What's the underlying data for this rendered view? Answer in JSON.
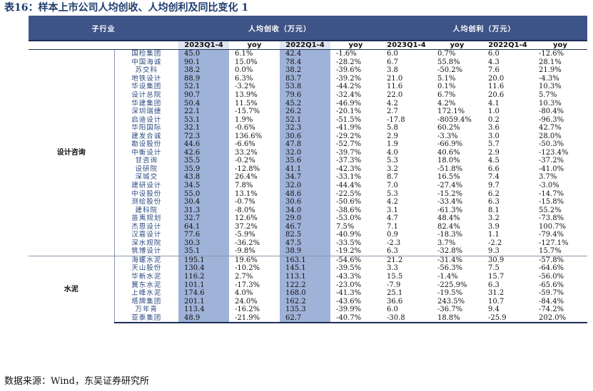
{
  "title": "表16：样本上市公司人均创收、人均创利及同比变化 1",
  "source": "数据来源：Wind，东吴证券研究所",
  "headers": {
    "subindustry": "子行业",
    "revenue_group": "人均创收（万元）",
    "profit_group": "人均创利（万元）",
    "period1": "2023Q1-4",
    "period2": "2022Q1-4",
    "yoy": "yoy"
  },
  "groups": [
    {
      "name": "设计咨询",
      "rows": [
        {
          "company": "国检集团",
          "rev2023": "45.0",
          "rev_yoy": "6.1%",
          "rev2022": "42.4",
          "rev2022_yoy": "-1.6%",
          "pro2023": "6.0",
          "pro_yoy": "0.7%",
          "pro2022": "6.0",
          "pro2022_yoy": "-12.6%"
        },
        {
          "company": "中国海诚",
          "rev2023": "90.1",
          "rev_yoy": "15.0%",
          "rev2022": "78.4",
          "rev2022_yoy": "-28.2%",
          "pro2023": "6.7",
          "pro_yoy": "55.8%",
          "pro2022": "4.3",
          "pro2022_yoy": "28.1%"
        },
        {
          "company": "苏交科",
          "rev2023": "38.2",
          "rev_yoy": "0.0%",
          "rev2022": "38.2",
          "rev2022_yoy": "-39.6%",
          "pro2023": "3.8",
          "pro_yoy": "-50.2%",
          "pro2022": "7.6",
          "pro2022_yoy": "21.9%"
        },
        {
          "company": "地铁设计",
          "rev2023": "88.9",
          "rev_yoy": "6.3%",
          "rev2022": "83.7",
          "rev2022_yoy": "-39.2%",
          "pro2023": "21.0",
          "pro_yoy": "5.1%",
          "pro2022": "20.0",
          "pro2022_yoy": "-4.3%"
        },
        {
          "company": "华设集团",
          "rev2023": "52.1",
          "rev_yoy": "-3.2%",
          "rev2022": "53.8",
          "rev2022_yoy": "-44.2%",
          "pro2023": "11.6",
          "pro_yoy": "0.1%",
          "pro2022": "11.6",
          "pro2022_yoy": "10.3%"
        },
        {
          "company": "设计总院",
          "rev2023": "90.7",
          "rev_yoy": "13.9%",
          "rev2022": "79.6",
          "rev2022_yoy": "-32.4%",
          "pro2023": "22.0",
          "pro_yoy": "6.7%",
          "pro2022": "20.6",
          "pro2022_yoy": "5.7%"
        },
        {
          "company": "华建集团",
          "rev2023": "50.4",
          "rev_yoy": "11.5%",
          "rev2022": "45.2",
          "rev2022_yoy": "-46.9%",
          "pro2023": "4.2",
          "pro_yoy": "4.2%",
          "pro2022": "4.1",
          "pro2022_yoy": "10.3%"
        },
        {
          "company": "深圳瑞捷",
          "rev2023": "22.1",
          "rev_yoy": "-15.7%",
          "rev2022": "26.2",
          "rev2022_yoy": "-20.1%",
          "pro2023": "2.7",
          "pro_yoy": "172.1%",
          "pro2022": "1.0",
          "pro2022_yoy": "-80.4%"
        },
        {
          "company": "启迪设计",
          "rev2023": "53.1",
          "rev_yoy": "1.9%",
          "rev2022": "52.1",
          "rev2022_yoy": "-51.5%",
          "pro2023": "-17.8",
          "pro_yoy": "-8059.4%",
          "pro2022": "0.2",
          "pro2022_yoy": "-96.3%"
        },
        {
          "company": "华阳国际",
          "rev2023": "32.1",
          "rev_yoy": "-0.6%",
          "rev2022": "32.3",
          "rev2022_yoy": "-41.9%",
          "pro2023": "5.8",
          "pro_yoy": "60.2%",
          "pro2022": "3.6",
          "pro2022_yoy": "42.7%"
        },
        {
          "company": "建发合诚",
          "rev2023": "72.3",
          "rev_yoy": "136.6%",
          "rev2022": "30.6",
          "rev2022_yoy": "-29.2%",
          "pro2023": "2.9",
          "pro_yoy": "-3.3%",
          "pro2022": "3.0",
          "pro2022_yoy": "28.0%"
        },
        {
          "company": "勘设股份",
          "rev2023": "44.6",
          "rev_yoy": "-6.6%",
          "rev2022": "47.8",
          "rev2022_yoy": "-52.7%",
          "pro2023": "1.9",
          "pro_yoy": "-66.9%",
          "pro2022": "5.7",
          "pro2022_yoy": "-50.3%"
        },
        {
          "company": "中衡设计",
          "rev2023": "42.6",
          "rev_yoy": "33.2%",
          "rev2022": "32.0",
          "rev2022_yoy": "-39.7%",
          "pro2023": "4.0",
          "pro_yoy": "40.6%",
          "pro2022": "2.9",
          "pro2022_yoy": "-123.4%"
        },
        {
          "company": "甘咨询",
          "rev2023": "35.5",
          "rev_yoy": "-0.2%",
          "rev2022": "35.6",
          "rev2022_yoy": "-37.3%",
          "pro2023": "5.3",
          "pro_yoy": "18.0%",
          "pro2022": "4.5",
          "pro2022_yoy": "-37.2%"
        },
        {
          "company": "设研院",
          "rev2023": "35.9",
          "rev_yoy": "-12.8%",
          "rev2022": "41.1",
          "rev2022_yoy": "-42.3%",
          "pro2023": "3.2",
          "pro_yoy": "-51.8%",
          "pro2022": "6.6",
          "pro2022_yoy": "-41.0%"
        },
        {
          "company": "深城交",
          "rev2023": "43.8",
          "rev_yoy": "26.4%",
          "rev2022": "34.7",
          "rev2022_yoy": "-33.1%",
          "pro2023": "8.7",
          "pro_yoy": "16.5%",
          "pro2022": "7.4",
          "pro2022_yoy": "3.7%"
        },
        {
          "company": "建研设计",
          "rev2023": "34.5",
          "rev_yoy": "7.8%",
          "rev2022": "32.0",
          "rev2022_yoy": "-44.4%",
          "pro2023": "7.0",
          "pro_yoy": "-27.4%",
          "pro2022": "9.7",
          "pro2022_yoy": "-3.0%"
        },
        {
          "company": "中设股份",
          "rev2023": "55.0",
          "rev_yoy": "13.1%",
          "rev2022": "48.6",
          "rev2022_yoy": "-22.5%",
          "pro2023": "5.3",
          "pro_yoy": "-15.2%",
          "pro2022": "6.2",
          "pro2022_yoy": "-14.7%"
        },
        {
          "company": "测绘股份",
          "rev2023": "30.4",
          "rev_yoy": "-0.7%",
          "rev2022": "30.6",
          "rev2022_yoy": "-50.6%",
          "pro2023": "4.2",
          "pro_yoy": "-33.4%",
          "pro2022": "6.3",
          "pro2022_yoy": "-15.8%"
        },
        {
          "company": "建科院",
          "rev2023": "31.3",
          "rev_yoy": "-8.0%",
          "rev2022": "34.0",
          "rev2022_yoy": "-38.6%",
          "pro2023": "3.1",
          "pro_yoy": "-61.3%",
          "pro2022": "8.1",
          "pro2022_yoy": "55.2%"
        },
        {
          "company": "苗夷规划",
          "rev2023": "32.7",
          "rev_yoy": "12.6%",
          "rev2022": "29.0",
          "rev2022_yoy": "-53.0%",
          "pro2023": "4.7",
          "pro_yoy": "48.4%",
          "pro2022": "3.2",
          "pro2022_yoy": "-73.8%"
        },
        {
          "company": "杰恩设计",
          "rev2023": "64.1",
          "rev_yoy": "37.2%",
          "rev2022": "46.7",
          "rev2022_yoy": "7.5%",
          "pro2023": "7.1",
          "pro_yoy": "82.4%",
          "pro2022": "3.9",
          "pro2022_yoy": "100.7%"
        },
        {
          "company": "汉嘉设计",
          "rev2023": "77.6",
          "rev_yoy": "-5.9%",
          "rev2022": "82.5",
          "rev2022_yoy": "-40.9%",
          "pro2023": "0.9",
          "pro_yoy": "-18.3%",
          "pro2022": "1.1",
          "pro2022_yoy": "-79.4%"
        },
        {
          "company": "深水规院",
          "rev2023": "30.3",
          "rev_yoy": "-36.2%",
          "rev2022": "47.5",
          "rev2022_yoy": "-33.5%",
          "pro2023": "-2.3",
          "pro_yoy": "3.7%",
          "pro2022": "-2.2",
          "pro2022_yoy": "-127.1%"
        },
        {
          "company": "筑博设计",
          "rev2023": "35.1",
          "rev_yoy": "-9.8%",
          "rev2022": "38.9",
          "rev2022_yoy": "-19.2%",
          "pro2023": "6.3",
          "pro_yoy": "-32.8%",
          "pro2022": "9.3",
          "pro2022_yoy": "15.7%"
        }
      ]
    },
    {
      "name": "水泥",
      "rows": [
        {
          "company": "海螺水泥",
          "rev2023": "195.1",
          "rev_yoy": "19.6%",
          "rev2022": "163.1",
          "rev2022_yoy": "-54.6%",
          "pro2023": "21.2",
          "pro_yoy": "-31.4%",
          "pro2022": "30.9",
          "pro2022_yoy": "-57.8%"
        },
        {
          "company": "天山股份",
          "rev2023": "130.4",
          "rev_yoy": "-10.2%",
          "rev2022": "145.1",
          "rev2022_yoy": "-39.5%",
          "pro2023": "3.3",
          "pro_yoy": "-56.3%",
          "pro2022": "7.5",
          "pro2022_yoy": "-64.6%"
        },
        {
          "company": "华新水泥",
          "rev2023": "116.2",
          "rev_yoy": "2.7%",
          "rev2022": "113.1",
          "rev2022_yoy": "-43.3%",
          "pro2023": "15.5",
          "pro_yoy": "-1.4%",
          "pro2022": "15.7",
          "pro2022_yoy": "-56.0%"
        },
        {
          "company": "冀东水泥",
          "rev2023": "101.1",
          "rev_yoy": "-17.3%",
          "rev2022": "122.2",
          "rev2022_yoy": "-23.0%",
          "pro2023": "-7.9",
          "pro_yoy": "-225.9%",
          "pro2022": "6.3",
          "pro2022_yoy": "-65.6%"
        },
        {
          "company": "上峰水泥",
          "rev2023": "174.6",
          "rev_yoy": "4.0%",
          "rev2022": "168.0",
          "rev2022_yoy": "-41.3%",
          "pro2023": "25.1",
          "pro_yoy": "-19.5%",
          "pro2022": "31.2",
          "pro2022_yoy": "-59.7%"
        },
        {
          "company": "塔牌集团",
          "rev2023": "201.1",
          "rev_yoy": "24.0%",
          "rev2022": "162.2",
          "rev2022_yoy": "-43.6%",
          "pro2023": "36.6",
          "pro_yoy": "243.5%",
          "pro2022": "10.7",
          "pro2022_yoy": "-84.4%"
        },
        {
          "company": "万年青",
          "rev2023": "113.4",
          "rev_yoy": "-16.2%",
          "rev2022": "135.3",
          "rev2022_yoy": "-39.9%",
          "pro2023": "6.0",
          "pro_yoy": "-36.7%",
          "pro2022": "9.4",
          "pro2022_yoy": "-74.2%"
        },
        {
          "company": "亚泰集团",
          "rev2023": "48.9",
          "rev_yoy": "-21.9%",
          "rev2022": "62.7",
          "rev2022_yoy": "-40.7%",
          "pro2023": "-30.8",
          "pro_yoy": "18.8%",
          "pro2022": "-25.9",
          "pro2022_yoy": "202.0%"
        }
      ]
    }
  ]
}
